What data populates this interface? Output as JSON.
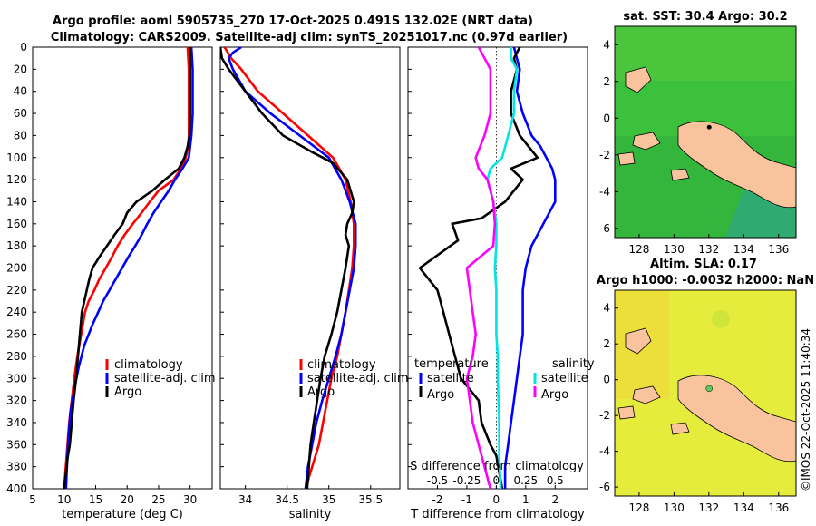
{
  "figure": {
    "title_line1": "Argo profile: aoml 5905735_270 17-Oct-2025 0.491S 132.02E (NRT data)",
    "title_line2": "Climatology: CARS2009. Satellite-adj clim: synTS_20251017.nc (0.97d earlier)",
    "watermark": "©IMOS 22-Oct-2025 11:40:34",
    "colors": {
      "climatology": "#ff0000",
      "satellite": "#0000ff",
      "argo": "#000000",
      "salinity_satellite": "#00e5e5",
      "salinity_argo": "#ff00ff",
      "land": "#f9c49d",
      "sst_green": "#3cc13c",
      "sla_yellow": "#e6ec3c"
    }
  },
  "depth_ticks": [
    0,
    20,
    40,
    60,
    80,
    100,
    120,
    140,
    160,
    180,
    200,
    220,
    240,
    260,
    280,
    300,
    320,
    340,
    360,
    380,
    400
  ],
  "chart_data": [
    {
      "type": "line",
      "id": "temperature",
      "xlabel": "temperature (deg C)",
      "xticks": [
        5,
        10,
        15,
        20,
        25,
        30
      ],
      "xlim": [
        5,
        33.5
      ],
      "ylim": [
        0,
        400
      ],
      "legend": [
        "climatology",
        "satellite-adj. clim",
        "Argo"
      ],
      "series": [
        {
          "name": "climatology",
          "color": "#ff0000",
          "x": [
            29.6,
            29.8,
            29.8,
            29.8,
            29.8,
            29.7,
            29.3,
            28.5,
            27.4,
            25.0,
            23.6,
            22.3,
            20.9,
            19.6,
            18.5,
            17.6,
            16.6,
            15.6,
            14.8,
            13.9,
            13.3,
            12.7,
            12.1,
            11.6,
            11.2,
            10.8,
            10.4,
            10.0
          ],
          "y": [
            0,
            20,
            40,
            60,
            80,
            90,
            100,
            110,
            120,
            130,
            140,
            150,
            160,
            170,
            180,
            190,
            200,
            210,
            220,
            230,
            240,
            260,
            280,
            300,
            320,
            340,
            370,
            400
          ]
        },
        {
          "name": "satellite-adj. clim",
          "color": "#0000ff",
          "x": [
            30.2,
            30.4,
            30.4,
            30.4,
            30.2,
            29.8,
            28.8,
            27.6,
            26.6,
            25.4,
            24.2,
            23.2,
            22.3,
            21.3,
            20.2,
            19.2,
            18.2,
            17.2,
            16.2,
            15.4,
            14.6,
            13.2,
            12.3,
            11.6,
            11.0,
            10.6,
            10.3
          ],
          "y": [
            0,
            20,
            40,
            60,
            80,
            100,
            110,
            120,
            130,
            140,
            150,
            160,
            170,
            180,
            190,
            200,
            210,
            220,
            230,
            240,
            250,
            270,
            290,
            310,
            330,
            360,
            400
          ]
        },
        {
          "name": "Argo",
          "color": "#000000",
          "x": [
            30.0,
            30.0,
            30.0,
            30.0,
            29.9,
            29.6,
            29.1,
            28.2,
            26.0,
            24.0,
            21.5,
            20.0,
            19.3,
            18.0,
            16.8,
            15.6,
            14.5,
            14.0,
            13.6,
            13.2,
            12.8,
            12.5,
            12.2,
            11.9,
            11.5,
            11.2,
            10.9,
            10.6,
            10.3,
            10.0
          ],
          "y": [
            0,
            20,
            40,
            60,
            80,
            90,
            100,
            110,
            120,
            130,
            140,
            150,
            160,
            170,
            180,
            190,
            200,
            210,
            220,
            230,
            240,
            260,
            280,
            300,
            320,
            340,
            360,
            370,
            385,
            400
          ]
        }
      ]
    },
    {
      "type": "line",
      "id": "salinity",
      "xlabel": "salinity",
      "xticks": [
        34,
        34.5,
        35,
        35.5
      ],
      "xlim": [
        33.7,
        35.85
      ],
      "ylim": [
        0,
        400
      ],
      "legend": [
        "climatology",
        "satellite-adj. clim",
        "Argo"
      ],
      "series": [
        {
          "name": "climatology",
          "color": "#ff0000",
          "x": [
            33.75,
            33.83,
            33.95,
            34.15,
            34.45,
            34.75,
            35.05,
            35.2,
            35.26,
            35.3,
            35.3,
            35.28,
            35.24,
            35.2,
            35.15,
            35.1,
            35.03,
            34.98,
            34.93,
            34.88,
            34.84,
            34.8,
            34.76,
            34.73
          ],
          "y": [
            0,
            10,
            20,
            40,
            60,
            80,
            100,
            120,
            140,
            160,
            180,
            200,
            220,
            240,
            260,
            280,
            300,
            320,
            340,
            360,
            370,
            380,
            390,
            400
          ]
        },
        {
          "name": "satellite-adj. clim",
          "color": "#0000ff",
          "x": [
            33.95,
            33.85,
            33.8,
            33.85,
            34.0,
            34.3,
            34.65,
            35.0,
            35.15,
            35.25,
            35.32,
            35.32,
            35.3,
            35.25,
            35.2,
            35.15,
            35.08,
            35.0,
            34.92,
            34.85,
            34.8,
            34.75,
            34.72
          ],
          "y": [
            0,
            5,
            10,
            20,
            40,
            60,
            80,
            100,
            120,
            140,
            160,
            180,
            200,
            220,
            240,
            260,
            280,
            300,
            320,
            340,
            360,
            380,
            400
          ]
        },
        {
          "name": "Argo",
          "color": "#000000",
          "x": [
            33.7,
            33.72,
            33.8,
            34.0,
            34.2,
            34.45,
            34.8,
            35.05,
            35.22,
            35.3,
            35.28,
            35.22,
            35.2,
            35.24,
            35.2,
            35.15,
            35.1,
            35.03,
            34.95,
            34.9,
            34.86,
            34.82,
            34.78,
            34.74
          ],
          "y": [
            0,
            10,
            20,
            40,
            60,
            80,
            95,
            105,
            120,
            140,
            150,
            160,
            170,
            180,
            200,
            220,
            240,
            260,
            280,
            300,
            320,
            340,
            360,
            400
          ]
        }
      ]
    },
    {
      "type": "line",
      "id": "difference",
      "xlabel": "T difference from climatology",
      "xlabel_top": "S difference from climatology",
      "xticks": [
        -2,
        -1,
        0,
        1,
        2
      ],
      "xlim": [
        -3.0,
        3.1
      ],
      "xticks_top": [
        -0.5,
        -0.25,
        0,
        0.25,
        0.5
      ],
      "xtick_labels_top": [
        "-0.5",
        "-0.25",
        "0",
        "0.25",
        "0.5"
      ],
      "ylim": [
        0,
        400
      ],
      "legend_temperature": {
        "title": "temperature",
        "entries": [
          "satellite",
          "Argo"
        ]
      },
      "legend_salinity": {
        "title": "salinity",
        "entries": [
          "satellite",
          "Argo"
        ]
      },
      "series": [
        {
          "name": "temperature satellite",
          "color": "#0000ff",
          "x": [
            0.6,
            0.7,
            0.8,
            0.7,
            0.9,
            1.2,
            1.5,
            1.7,
            1.9,
            2.0,
            2.0,
            1.6,
            1.2,
            1.0,
            0.9,
            0.9,
            0.9,
            0.8,
            0.7,
            0.6,
            0.5,
            0.4,
            0.3,
            0.3
          ],
          "y": [
            0,
            10,
            20,
            40,
            60,
            80,
            90,
            100,
            110,
            120,
            140,
            160,
            180,
            200,
            220,
            240,
            260,
            280,
            300,
            320,
            340,
            360,
            380,
            400
          ]
        },
        {
          "name": "temperature Argo",
          "color": "#000000",
          "x": [
            0.8,
            0.6,
            0.7,
            0.5,
            0.5,
            0.8,
            1.4,
            0.5,
            0.9,
            0.3,
            -0.5,
            -1.5,
            -1.3,
            -2.6,
            -2.0,
            -1.8,
            -1.6,
            -1.4,
            -1.2,
            -0.6,
            -0.5,
            -0.2,
            0.0,
            0.1,
            0.2
          ],
          "y": [
            0,
            10,
            20,
            40,
            60,
            80,
            100,
            110,
            120,
            140,
            155,
            160,
            175,
            200,
            220,
            240,
            260,
            280,
            300,
            320,
            340,
            360,
            370,
            385,
            400
          ]
        },
        {
          "name": "salinity satellite",
          "color": "#00e5e5",
          "x": [
            0.5,
            0.5,
            0.7,
            0.6,
            0.6,
            0.4,
            0.2,
            -0.2,
            -0.3,
            -0.1,
            0.0,
            0.0,
            -0.05,
            0.0,
            0.0,
            0.0,
            0.05,
            0.05,
            0.1,
            0.1,
            0.15
          ],
          "y": [
            0,
            10,
            20,
            40,
            60,
            80,
            100,
            110,
            120,
            140,
            160,
            180,
            200,
            220,
            240,
            260,
            280,
            300,
            340,
            370,
            400
          ]
        },
        {
          "name": "salinity Argo",
          "color": "#ff00ff",
          "x": [
            -0.6,
            -0.4,
            -0.2,
            -0.2,
            -0.2,
            -0.4,
            -0.7,
            -0.6,
            -0.3,
            -0.1,
            -0.05,
            -0.1,
            -1.0,
            -0.9,
            -0.8,
            -0.7,
            -0.8,
            -1.0,
            -0.9,
            -0.8,
            -0.6,
            -0.4,
            -0.2
          ],
          "y": [
            0,
            10,
            20,
            40,
            60,
            80,
            100,
            110,
            120,
            140,
            160,
            180,
            200,
            220,
            240,
            260,
            280,
            300,
            320,
            340,
            360,
            380,
            400
          ]
        }
      ]
    },
    {
      "type": "heatmap",
      "id": "sst-map",
      "title": "sat. SST: 30.4 Argo: 30.2",
      "xticks": [
        128,
        130,
        132,
        134,
        136
      ],
      "yticks": [
        4,
        2,
        0,
        -2,
        -4,
        -6
      ],
      "xlim": [
        126.6,
        137.0
      ],
      "ylim": [
        -6.5,
        5.0
      ],
      "argo_position": {
        "lon": 132.02,
        "lat": -0.491
      }
    },
    {
      "type": "heatmap",
      "id": "sla-map",
      "title_line1": "Altim. SLA: 0.17",
      "title_line2": "Argo h1000: -0.0032 h2000: NaN",
      "xticks": [
        128,
        130,
        132,
        134,
        136
      ],
      "yticks": [
        4,
        2,
        0,
        -2,
        -4,
        -6
      ],
      "xlim": [
        126.6,
        137.0
      ],
      "ylim": [
        -6.5,
        5.0
      ],
      "argo_position": {
        "lon": 132.02,
        "lat": -0.491
      }
    }
  ]
}
